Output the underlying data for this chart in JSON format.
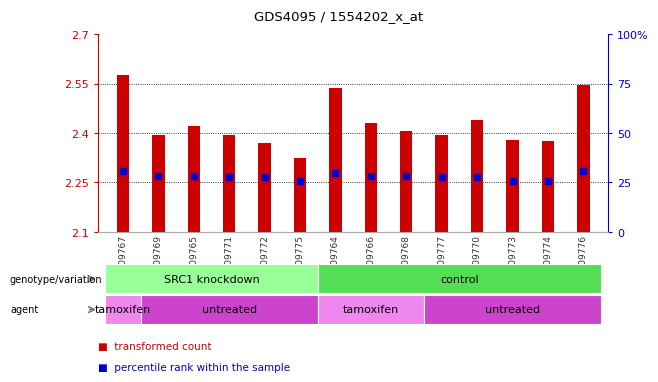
{
  "title": "GDS4095 / 1554202_x_at",
  "samples": [
    "GSM709767",
    "GSM709769",
    "GSM709765",
    "GSM709771",
    "GSM709772",
    "GSM709775",
    "GSM709764",
    "GSM709766",
    "GSM709768",
    "GSM709777",
    "GSM709770",
    "GSM709773",
    "GSM709774",
    "GSM709776"
  ],
  "bar_values": [
    2.575,
    2.395,
    2.42,
    2.395,
    2.37,
    2.325,
    2.535,
    2.43,
    2.405,
    2.395,
    2.44,
    2.38,
    2.375,
    2.545
  ],
  "percentile_values": [
    2.285,
    2.27,
    2.27,
    2.265,
    2.265,
    2.255,
    2.28,
    2.27,
    2.27,
    2.265,
    2.265,
    2.255,
    2.255,
    2.285
  ],
  "ymin": 2.1,
  "ymax": 2.7,
  "yticks": [
    2.1,
    2.25,
    2.4,
    2.55,
    2.7
  ],
  "ytick_labels": [
    "2.1",
    "2.25",
    "2.4",
    "2.55",
    "2.7"
  ],
  "right_yticks": [
    0,
    25,
    50,
    75,
    100
  ],
  "right_ytick_labels": [
    "0",
    "25",
    "50",
    "75",
    "100%"
  ],
  "bar_color": "#cc0000",
  "percentile_color": "#0000cc",
  "bar_bottom": 2.1,
  "hlines": [
    2.25,
    2.4,
    2.55
  ],
  "genotype_row": [
    {
      "label": "SRC1 knockdown",
      "start": 0,
      "end": 6,
      "color": "#99ff99"
    },
    {
      "label": "control",
      "start": 6,
      "end": 14,
      "color": "#55dd55"
    }
  ],
  "agent_row": [
    {
      "label": "tamoxifen",
      "start": 0,
      "end": 1,
      "color": "#ee88ee"
    },
    {
      "label": "untreated",
      "start": 1,
      "end": 6,
      "color": "#cc44cc"
    },
    {
      "label": "tamoxifen",
      "start": 6,
      "end": 9,
      "color": "#ee88ee"
    },
    {
      "label": "untreated",
      "start": 9,
      "end": 14,
      "color": "#cc44cc"
    }
  ],
  "left_axis_color": "#cc0000",
  "right_axis_color": "#0000cc",
  "legend_items": [
    {
      "color": "#cc0000",
      "label": "transformed count"
    },
    {
      "color": "#0000cc",
      "label": "percentile rank within the sample"
    }
  ],
  "genotype_label": "genotype/variation",
  "agent_label": "agent",
  "bar_width": 0.35
}
